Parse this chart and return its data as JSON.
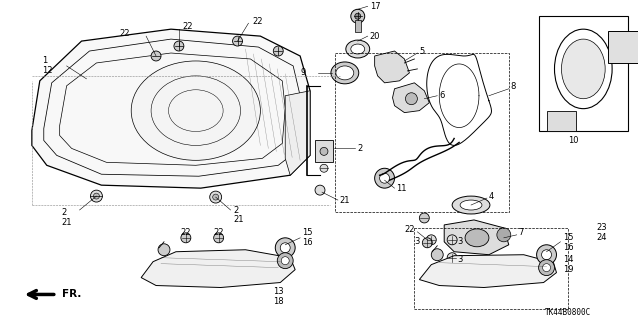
{
  "bg_color": "#ffffff",
  "footer_text": "TK44B0800C",
  "figsize": [
    6.4,
    3.19
  ],
  "dpi": 100
}
